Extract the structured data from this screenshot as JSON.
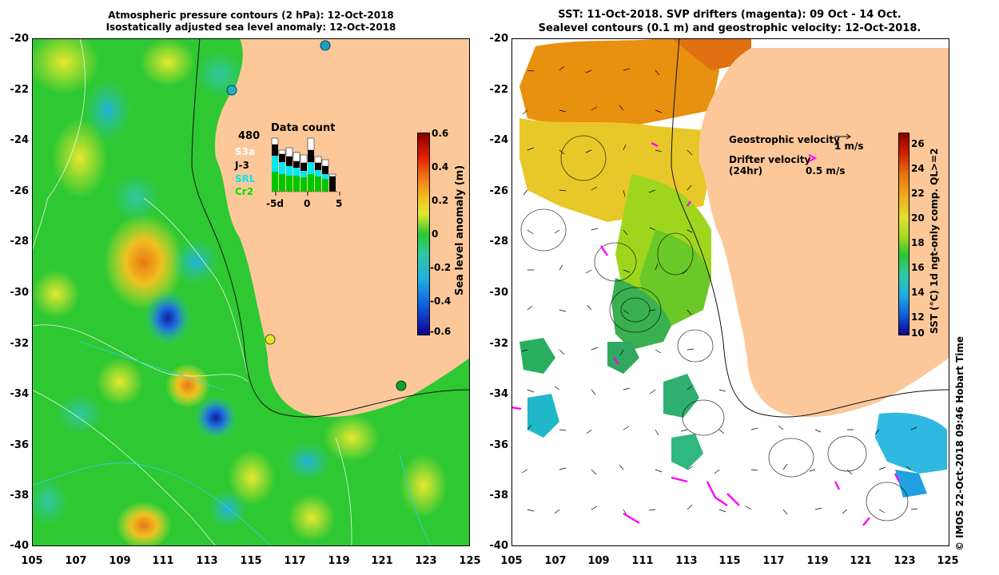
{
  "left_panel": {
    "title_line1": "Atmospheric pressure contours (2 hPa): 12-Oct-2018",
    "title_line2": "Isostatically adjusted sea level anomaly: 12-Oct-2018",
    "colorbar": {
      "label": "Sea level anomaly (m)",
      "ticks": [
        "0.6",
        "0.4",
        "0.2",
        "0",
        "-0.2",
        "-0.4",
        "-0.6"
      ]
    },
    "inset": {
      "title": "Data count",
      "max_label": "480",
      "missions": [
        "S3a",
        "J-3",
        "SRL",
        "Cr2"
      ],
      "mission_colors": [
        "#ffffff",
        "#000000",
        "#00e8f0",
        "#00c800"
      ],
      "x_ticks": [
        "-5d",
        "0",
        "5"
      ]
    }
  },
  "right_panel": {
    "title_line1": "SST: 11-Oct-2018. SVP drifters (magenta): 09 Oct - 14 Oct.",
    "title_line2": "Sealevel contours (0.1 m) and geostrophic velocity: 12-Oct-2018.",
    "colorbar": {
      "label": "SST (°C) 1d ngt-only comp. QL>=2",
      "ticks": [
        "26",
        "24",
        "22",
        "20",
        "18",
        "16",
        "14",
        "12",
        "10"
      ]
    },
    "legend": {
      "geostrophic_label": "Geostrophic velocity",
      "geostrophic_scale": "1 m/s",
      "drifter_label": "Drifter velocity",
      "drifter_period": "(24hr)",
      "drifter_scale": "0.5 m/s",
      "drifter_color": "#ff00ff"
    }
  },
  "axes": {
    "y_ticks": [
      "-20",
      "-22",
      "-24",
      "-26",
      "-28",
      "-30",
      "-32",
      "-34",
      "-36",
      "-38",
      "-40"
    ],
    "x_ticks": [
      "105",
      "107",
      "109",
      "111",
      "113",
      "115",
      "117",
      "119",
      "121",
      "123",
      "125"
    ]
  },
  "credit": "© IMOS 22-Oct-2018 09:46 Hobart Time",
  "colors": {
    "land": "#fcc89a",
    "ocean_base": "#2ec832",
    "panel_bg": "#ffffff"
  }
}
